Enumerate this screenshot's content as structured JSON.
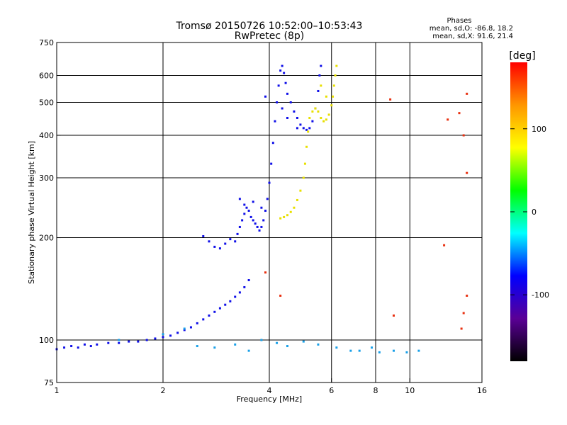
{
  "chart_data": {
    "type": "scatter",
    "title": "Tromsø 20150726 10:52:00–10:53:43",
    "subtitle": "RwPretec (8p)",
    "xlabel": "Frequency [MHz]",
    "ylabel": "Stationary phase Virtual Height [km]",
    "x_scale": "log2",
    "y_scale": "log",
    "xlim": [
      1,
      16
    ],
    "ylim": [
      75,
      750
    ],
    "x_ticks": [
      1,
      2,
      4,
      6,
      8,
      10,
      16
    ],
    "y_ticks": [
      75,
      100,
      200,
      300,
      400,
      500,
      600,
      750
    ],
    "x_gridlines": [
      2,
      4,
      6,
      8,
      10
    ],
    "y_gridlines": [
      100,
      200,
      300,
      400,
      500,
      600
    ],
    "phase_stats": {
      "heading": "Phases",
      "line_o": "mean, sd,O: -86.8, 18.2",
      "line_x": "mean, sd,X:  91.6, 21.4"
    },
    "colorbar": {
      "label": "[deg]",
      "range": [
        -180,
        180
      ],
      "ticks": [
        100,
        0,
        -100
      ],
      "colors": [
        "#ff0000",
        "#ff9600",
        "#ffff00",
        "#00ff00",
        "#00ffff",
        "#0000ff",
        "#5a0096",
        "#000000"
      ]
    },
    "series": [
      {
        "name": "O-mode trace (blue)",
        "color": "#1010e8",
        "points": [
          [
            1.0,
            94
          ],
          [
            1.05,
            95
          ],
          [
            1.1,
            96
          ],
          [
            1.15,
            95
          ],
          [
            1.2,
            97
          ],
          [
            1.25,
            96
          ],
          [
            1.3,
            97
          ],
          [
            1.4,
            98
          ],
          [
            1.5,
            98
          ],
          [
            1.6,
            99
          ],
          [
            1.7,
            99
          ],
          [
            1.8,
            100
          ],
          [
            1.9,
            101
          ],
          [
            2.0,
            102
          ],
          [
            2.1,
            103
          ],
          [
            2.2,
            105
          ],
          [
            2.3,
            107
          ],
          [
            2.4,
            109
          ],
          [
            2.5,
            112
          ],
          [
            2.6,
            115
          ],
          [
            2.7,
            118
          ],
          [
            2.8,
            121
          ],
          [
            2.9,
            124
          ],
          [
            3.0,
            127
          ],
          [
            3.1,
            130
          ],
          [
            3.2,
            134
          ],
          [
            3.3,
            138
          ],
          [
            3.4,
            143
          ],
          [
            3.5,
            150
          ],
          [
            2.6,
            202
          ],
          [
            2.7,
            195
          ],
          [
            2.8,
            188
          ],
          [
            2.9,
            186
          ],
          [
            3.0,
            192
          ],
          [
            3.1,
            198
          ],
          [
            3.2,
            195
          ],
          [
            3.25,
            205
          ],
          [
            3.3,
            215
          ],
          [
            3.35,
            225
          ],
          [
            3.4,
            235
          ],
          [
            3.45,
            245
          ],
          [
            3.5,
            240
          ],
          [
            3.55,
            230
          ],
          [
            3.6,
            225
          ],
          [
            3.65,
            220
          ],
          [
            3.7,
            215
          ],
          [
            3.75,
            210
          ],
          [
            3.8,
            215
          ],
          [
            3.85,
            225
          ],
          [
            3.9,
            240
          ],
          [
            3.95,
            260
          ],
          [
            4.0,
            290
          ],
          [
            4.05,
            330
          ],
          [
            4.1,
            380
          ],
          [
            4.15,
            440
          ],
          [
            4.2,
            500
          ],
          [
            4.25,
            560
          ],
          [
            4.3,
            620
          ],
          [
            4.35,
            640
          ],
          [
            4.4,
            610
          ],
          [
            4.45,
            570
          ],
          [
            4.5,
            530
          ],
          [
            4.6,
            500
          ],
          [
            4.7,
            470
          ],
          [
            4.8,
            450
          ],
          [
            4.9,
            430
          ],
          [
            5.0,
            420
          ],
          [
            5.1,
            415
          ],
          [
            5.2,
            420
          ],
          [
            5.3,
            440
          ],
          [
            5.4,
            480
          ],
          [
            5.5,
            540
          ],
          [
            5.55,
            600
          ],
          [
            5.6,
            640
          ],
          [
            3.3,
            260
          ],
          [
            3.4,
            250
          ],
          [
            3.6,
            255
          ],
          [
            3.8,
            245
          ],
          [
            4.35,
            480
          ],
          [
            4.5,
            450
          ],
          [
            4.8,
            420
          ],
          [
            3.9,
            520
          ]
        ]
      },
      {
        "name": "X-mode trace (yellow)",
        "color": "#e8e000",
        "points": [
          [
            4.3,
            228
          ],
          [
            4.4,
            230
          ],
          [
            4.5,
            233
          ],
          [
            4.6,
            238
          ],
          [
            4.7,
            245
          ],
          [
            4.8,
            258
          ],
          [
            4.9,
            275
          ],
          [
            5.0,
            300
          ],
          [
            5.05,
            330
          ],
          [
            5.1,
            370
          ],
          [
            5.15,
            410
          ],
          [
            5.2,
            450
          ],
          [
            5.3,
            470
          ],
          [
            5.4,
            480
          ],
          [
            5.5,
            470
          ],
          [
            5.6,
            450
          ],
          [
            5.7,
            440
          ],
          [
            5.8,
            445
          ],
          [
            5.9,
            460
          ],
          [
            6.0,
            490
          ],
          [
            6.05,
            520
          ],
          [
            6.1,
            560
          ],
          [
            6.15,
            600
          ],
          [
            6.2,
            640
          ],
          [
            5.6,
            560
          ],
          [
            5.8,
            520
          ]
        ]
      },
      {
        "name": "Low echoes (cyan / light blue)",
        "color": "#1aa0e8",
        "points": [
          [
            1.5,
            100
          ],
          [
            2.0,
            104
          ],
          [
            2.3,
            108
          ],
          [
            2.5,
            96
          ],
          [
            2.8,
            95
          ],
          [
            3.2,
            97
          ],
          [
            3.5,
            93
          ],
          [
            3.8,
            100
          ],
          [
            4.2,
            98
          ],
          [
            4.5,
            96
          ],
          [
            5.0,
            99
          ],
          [
            5.5,
            97
          ],
          [
            6.2,
            95
          ],
          [
            6.8,
            93
          ],
          [
            7.2,
            93
          ],
          [
            7.8,
            95
          ],
          [
            8.2,
            92
          ],
          [
            9.0,
            93
          ],
          [
            9.8,
            92
          ],
          [
            10.6,
            93
          ]
        ]
      },
      {
        "name": "Scattered outliers",
        "color": "#e83010",
        "points": [
          [
            8.8,
            510
          ],
          [
            12.8,
            445
          ],
          [
            13.8,
            465
          ],
          [
            14.5,
            530
          ],
          [
            14.2,
            400
          ],
          [
            14.5,
            310
          ],
          [
            12.5,
            190
          ],
          [
            14.5,
            135
          ],
          [
            14.2,
            120
          ],
          [
            14.0,
            108
          ],
          [
            4.3,
            135
          ],
          [
            9.0,
            118
          ],
          [
            3.9,
            158
          ]
        ]
      }
    ]
  }
}
